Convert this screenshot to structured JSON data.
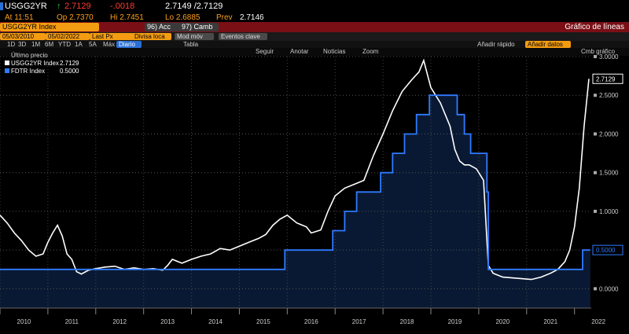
{
  "header": {
    "ticker": "USGG2YR",
    "last": "2.7129",
    "change": "-.0018",
    "bid_ask": "2.7149 /2.7129",
    "time_label": "At 11:51",
    "open_label": "Op 2.7370",
    "high_label": "Hi 2.7451",
    "low_label": "Lo 2.6885",
    "prev_label": "Prev",
    "prev_value": "2.7146"
  },
  "toolbar": {
    "security": "USGG2YR Index",
    "acc_label": "96) Acc",
    "camb_label": "97) Camb",
    "chart_type": "Gráfico de líneas",
    "start_date": "05/03/2010",
    "end_date": "05/02/2022",
    "field": "Last Px",
    "currency": "Divisa loca",
    "mod_label": "Mod móv",
    "events_label": "Eventos clave",
    "periods": [
      "1D",
      "3D",
      "1M",
      "6M",
      "YTD",
      "1A",
      "5A",
      "Máx"
    ],
    "frequency": "Diario",
    "table_label": "Tabla",
    "quick_add": "Añadir rápido",
    "add_data": "Añadir datos",
    "cmb_chart": "Cmb gráfico",
    "follow": "Seguir",
    "annotate": "Anotar",
    "news": "Noticias",
    "zoom": "Zoom"
  },
  "legend": {
    "title": "Último precio",
    "entries": [
      {
        "name": "USGG2YR Index",
        "value": "2.7129",
        "color": "#ffffff"
      },
      {
        "name": "FDTR Index",
        "value": "0.5000",
        "color": "#2f7bff"
      }
    ]
  },
  "chart_data": {
    "type": "line",
    "ylim": [
      -0.25,
      3.0
    ],
    "xlim": [
      2010.0,
      2022.35
    ],
    "yticks": [
      "0.0000",
      "0.5000",
      "1.0000",
      "1.5000",
      "2.0000",
      "2.5000",
      "3.0000"
    ],
    "ytick_values": [
      0,
      0.5,
      1.0,
      1.5,
      2.0,
      2.5,
      3.0
    ],
    "xticks": [
      "2010",
      "2011",
      "2012",
      "2013",
      "2014",
      "2015",
      "2016",
      "2017",
      "2018",
      "2019",
      "2020",
      "2021",
      "2022"
    ],
    "last_labels": {
      "usgg2yr": "2.7129",
      "fdtr": "0.5000"
    },
    "series": [
      {
        "name": "USGG2YR Index",
        "color": "#ffffff",
        "x": [
          2010.0,
          2010.15,
          2010.3,
          2010.45,
          2010.6,
          2010.75,
          2010.9,
          2011.0,
          2011.1,
          2011.2,
          2011.3,
          2011.4,
          2011.5,
          2011.6,
          2011.7,
          2011.85,
          2012.0,
          2012.2,
          2012.4,
          2012.6,
          2012.8,
          2013.0,
          2013.2,
          2013.4,
          2013.5,
          2013.6,
          2013.8,
          2014.0,
          2014.2,
          2014.4,
          2014.6,
          2014.8,
          2015.0,
          2015.2,
          2015.4,
          2015.55,
          2015.7,
          2015.85,
          2016.0,
          2016.2,
          2016.4,
          2016.5,
          2016.7,
          2016.85,
          2017.0,
          2017.2,
          2017.4,
          2017.6,
          2017.8,
          2018.0,
          2018.2,
          2018.4,
          2018.6,
          2018.75,
          2018.85,
          2019.0,
          2019.2,
          2019.4,
          2019.5,
          2019.6,
          2019.7,
          2019.8,
          2019.95,
          2020.1,
          2020.2,
          2020.3,
          2020.5,
          2020.7,
          2020.9,
          2021.1,
          2021.3,
          2021.5,
          2021.65,
          2021.8,
          2021.9,
          2022.0,
          2022.1,
          2022.2,
          2022.3
        ],
        "y": [
          0.95,
          0.85,
          0.72,
          0.62,
          0.5,
          0.42,
          0.45,
          0.6,
          0.72,
          0.82,
          0.68,
          0.45,
          0.38,
          0.22,
          0.19,
          0.24,
          0.26,
          0.28,
          0.29,
          0.25,
          0.27,
          0.25,
          0.26,
          0.24,
          0.3,
          0.38,
          0.33,
          0.38,
          0.42,
          0.45,
          0.52,
          0.5,
          0.55,
          0.6,
          0.65,
          0.7,
          0.82,
          0.9,
          0.95,
          0.85,
          0.8,
          0.72,
          0.76,
          1.0,
          1.2,
          1.3,
          1.35,
          1.4,
          1.72,
          2.0,
          2.3,
          2.55,
          2.7,
          2.8,
          2.95,
          2.6,
          2.4,
          2.1,
          1.8,
          1.65,
          1.6,
          1.6,
          1.55,
          1.4,
          0.3,
          0.2,
          0.15,
          0.14,
          0.13,
          0.12,
          0.15,
          0.2,
          0.25,
          0.35,
          0.5,
          0.8,
          1.3,
          2.1,
          2.7129
        ]
      },
      {
        "name": "FDTR Index",
        "color": "#2f7bff",
        "x": [
          2010.0,
          2015.95,
          2015.95,
          2016.95,
          2016.95,
          2017.2,
          2017.2,
          2017.45,
          2017.45,
          2017.95,
          2017.95,
          2018.2,
          2018.2,
          2018.45,
          2018.45,
          2018.7,
          2018.7,
          2018.97,
          2018.97,
          2019.55,
          2019.55,
          2019.7,
          2019.7,
          2019.83,
          2019.83,
          2020.17,
          2020.17,
          2020.2,
          2020.2,
          2022.17,
          2022.17,
          2022.33
        ],
        "y": [
          0.25,
          0.25,
          0.5,
          0.5,
          0.75,
          0.75,
          1.0,
          1.0,
          1.25,
          1.25,
          1.5,
          1.5,
          1.75,
          1.75,
          2.0,
          2.0,
          2.25,
          2.25,
          2.5,
          2.5,
          2.25,
          2.25,
          2.0,
          2.0,
          1.75,
          1.75,
          1.25,
          1.25,
          0.25,
          0.25,
          0.5,
          0.5
        ]
      }
    ]
  }
}
